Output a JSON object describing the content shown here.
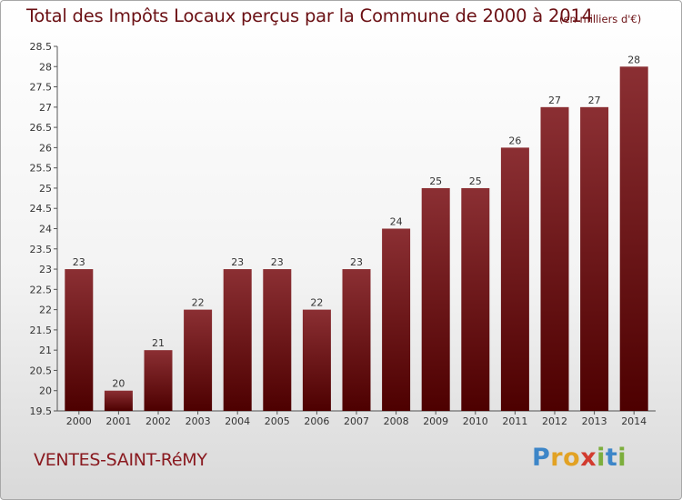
{
  "header": {
    "title": "Total des Impôts Locaux perçus par la Commune de 2000 à 2014",
    "unit": "(en milliers d'€)"
  },
  "footer": {
    "commune": "VENTES-SAINT-RéMY",
    "logo_text": "Proxiti"
  },
  "colors": {
    "bar_top": "#8b2f33",
    "bar_bottom": "#4d0000",
    "title": "#6b1014"
  },
  "chart_data": {
    "type": "bar",
    "title": "Total des Impôts Locaux perçus par la Commune de 2000 à 2014",
    "unit": "(en milliers d'€)",
    "categories": [
      "2000",
      "2001",
      "2002",
      "2003",
      "2004",
      "2005",
      "2006",
      "2007",
      "2008",
      "2009",
      "2010",
      "2011",
      "2012",
      "2013",
      "2014"
    ],
    "values": [
      23,
      20,
      21,
      22,
      23,
      23,
      22,
      23,
      24,
      25,
      25,
      26,
      27,
      27,
      28
    ],
    "data_labels": [
      "23",
      "20",
      "21",
      "22",
      "23",
      "23",
      "22",
      "23",
      "24",
      "25",
      "25",
      "26",
      "27",
      "27",
      "28"
    ],
    "xlabel": "",
    "ylabel": "",
    "ylim": [
      19.5,
      28.5
    ],
    "yticks": [
      "19.5",
      "20",
      "20.5",
      "21",
      "21.5",
      "22",
      "22.5",
      "23",
      "23.5",
      "24",
      "24.5",
      "25",
      "25.5",
      "26",
      "26.5",
      "27",
      "27.5",
      "28",
      "28.5"
    ],
    "grid": false,
    "legend": "none"
  }
}
